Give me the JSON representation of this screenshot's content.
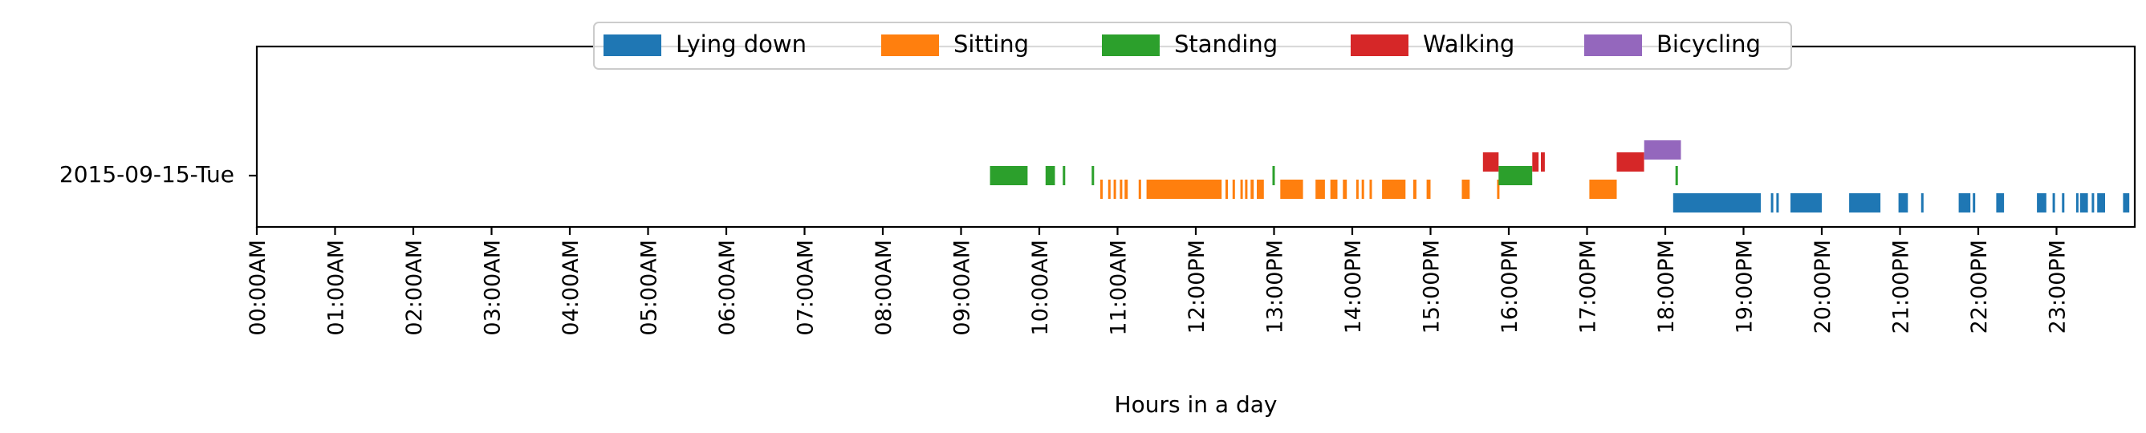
{
  "chart_data": {
    "type": "timeline",
    "xlabel": "Hours in a day",
    "xlim": [
      0,
      24
    ],
    "day_label": "2015-09-15-Tue",
    "x_ticks": [
      "00:00AM",
      "01:00AM",
      "02:00AM",
      "03:00AM",
      "04:00AM",
      "05:00AM",
      "06:00AM",
      "07:00AM",
      "08:00AM",
      "09:00AM",
      "10:00AM",
      "11:00AM",
      "12:00PM",
      "13:00PM",
      "14:00PM",
      "15:00PM",
      "16:00PM",
      "17:00PM",
      "18:00PM",
      "19:00PM",
      "20:00PM",
      "21:00PM",
      "22:00PM",
      "23:00PM"
    ],
    "legend_position": "top-center",
    "series": [
      {
        "name": "Lying down",
        "color": "#1f77b4",
        "intervals": [
          [
            18.1,
            19.22
          ],
          [
            19.35,
            19.37
          ],
          [
            19.42,
            19.45
          ],
          [
            19.6,
            20.0
          ],
          [
            20.35,
            20.75
          ],
          [
            20.98,
            21.1
          ],
          [
            21.27,
            21.3
          ],
          [
            21.75,
            21.9
          ],
          [
            21.93,
            21.96
          ],
          [
            22.23,
            22.33
          ],
          [
            22.75,
            22.87
          ],
          [
            22.95,
            22.98
          ],
          [
            23.07,
            23.1
          ],
          [
            23.25,
            23.28
          ],
          [
            23.3,
            23.4
          ],
          [
            23.45,
            23.47
          ],
          [
            23.52,
            23.62
          ],
          [
            23.85,
            23.93
          ]
        ]
      },
      {
        "name": "Sitting",
        "color": "#ff7f0e",
        "intervals": [
          [
            10.78,
            10.8
          ],
          [
            10.88,
            10.91
          ],
          [
            10.95,
            10.98
          ],
          [
            11.03,
            11.06
          ],
          [
            11.09,
            11.13
          ],
          [
            11.27,
            11.3
          ],
          [
            11.37,
            12.33
          ],
          [
            12.38,
            12.41
          ],
          [
            12.47,
            12.5
          ],
          [
            12.57,
            12.6
          ],
          [
            12.63,
            12.66
          ],
          [
            12.7,
            12.74
          ],
          [
            12.78,
            12.87
          ],
          [
            13.08,
            13.37
          ],
          [
            13.53,
            13.65
          ],
          [
            13.72,
            13.81
          ],
          [
            13.88,
            13.93
          ],
          [
            14.05,
            14.08
          ],
          [
            14.12,
            14.15
          ],
          [
            14.22,
            14.25
          ],
          [
            14.38,
            14.68
          ],
          [
            14.78,
            14.82
          ],
          [
            14.95,
            15.0
          ],
          [
            15.4,
            15.5
          ],
          [
            15.85,
            15.88
          ],
          [
            17.03,
            17.38
          ]
        ]
      },
      {
        "name": "Standing",
        "color": "#2ca02c",
        "intervals": [
          [
            9.37,
            9.85
          ],
          [
            10.08,
            10.2
          ],
          [
            10.3,
            10.33
          ],
          [
            10.67,
            10.7
          ],
          [
            12.98,
            13.01
          ],
          [
            15.87,
            16.3
          ],
          [
            18.13,
            18.16
          ]
        ]
      },
      {
        "name": "Walking",
        "color": "#d62728",
        "intervals": [
          [
            15.67,
            15.87
          ],
          [
            16.3,
            16.38
          ],
          [
            16.41,
            16.46
          ],
          [
            17.38,
            17.73
          ]
        ]
      },
      {
        "name": "Bicycling",
        "color": "#9467bd",
        "intervals": [
          [
            17.73,
            18.2
          ]
        ]
      }
    ]
  }
}
